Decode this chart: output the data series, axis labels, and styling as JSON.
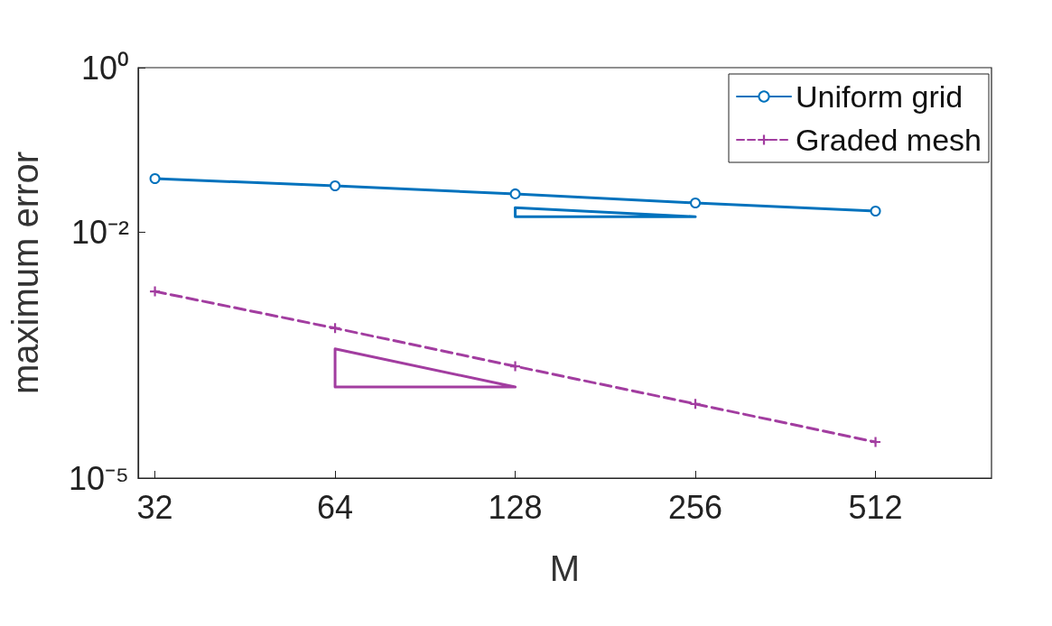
{
  "chart_data": {
    "type": "line",
    "xlabel": "M",
    "ylabel": "maximum error",
    "log": "xy",
    "grid": false,
    "legend": "top right",
    "xlim": [
      30,
      800
    ],
    "xticks": [
      32,
      64,
      128,
      256,
      512
    ],
    "ylim": [
      1e-05,
      1
    ],
    "yticks": [
      {
        "value": 1,
        "label": "10⁰"
      },
      {
        "value": 0.01,
        "label": "10⁻²"
      },
      {
        "value": 1e-05,
        "label": "10⁻⁵"
      }
    ],
    "x": [
      32,
      64,
      128,
      256,
      512
    ],
    "series": [
      {
        "name": "Uniform grid",
        "color": "#0072bd",
        "marker": "circle",
        "line_style": "solid",
        "values": [
          0.0445,
          0.0363,
          0.029,
          0.0225,
          0.0179
        ]
      },
      {
        "name": "Graded mesh",
        "color": "#a23da0",
        "marker": "cross",
        "line_style": "dashed",
        "values": [
          0.00188,
          0.00067,
          0.00023,
          8e-05,
          2.75e-05
        ]
      }
    ]
  }
}
